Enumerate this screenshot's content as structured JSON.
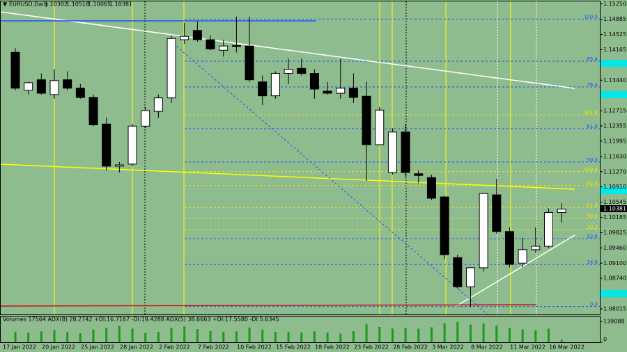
{
  "chart_data": {
    "type": "candlestick",
    "title": "EURUSD,Daily",
    "categories": [
      "17 Jan 2022",
      null,
      null,
      "20 Jan 2022",
      null,
      null,
      "25 Jan 2022",
      null,
      null,
      "28 Jan 2022",
      null,
      null,
      "2 Feb 2022",
      null,
      null,
      "7 Feb 2022",
      null,
      null,
      "10 Feb 2022",
      null,
      null,
      "15 Feb 2022",
      null,
      null,
      "18 Feb 2022",
      null,
      null,
      "23 Feb 2022",
      null,
      null,
      "28 Feb 2022",
      null,
      null,
      "3 Mar 2022",
      null,
      null,
      "8 Mar 2022",
      null,
      null,
      "11 Mar 2022",
      null,
      null,
      "16 Mar 2022"
    ],
    "open": [
      1.141,
      1.132,
      1.1345,
      1.131,
      1.1345,
      1.1325,
      1.1303,
      1.124,
      1.114,
      1.1145,
      1.1235,
      1.127,
      1.1302,
      1.144,
      1.1462,
      1.144,
      1.1415,
      1.1426,
      1.1425,
      1.134,
      1.1307,
      1.136,
      1.1372,
      1.136,
      1.1318,
      1.1313,
      1.1325,
      1.1306,
      1.1191,
      1.1125,
      1.1221,
      1.1122,
      1.1113,
      1.1067,
      1.0923,
      1.0854,
      1.0899,
      1.1072,
      1.0985,
      1.091,
      1.0942,
      1.095,
      1.10302
    ],
    "high": [
      1.142,
      1.134,
      1.136,
      1.137,
      1.1365,
      1.1335,
      1.131,
      1.1255,
      1.115,
      1.124,
      1.128,
      1.131,
      1.145,
      1.148,
      1.1483,
      1.145,
      1.144,
      1.1495,
      1.1495,
      1.1355,
      1.1365,
      1.1395,
      1.1395,
      1.137,
      1.134,
      1.1395,
      1.136,
      1.134,
      1.128,
      1.123,
      1.124,
      1.113,
      1.112,
      1.107,
      1.093,
      1.09,
      1.1075,
      1.111,
      1.0995,
      1.097,
      1.0995,
      1.104,
      1.10518
    ],
    "low": [
      1.132,
      1.131,
      1.131,
      1.13,
      1.132,
      1.13,
      1.1235,
      1.113,
      1.1125,
      1.114,
      1.123,
      1.1255,
      1.129,
      1.143,
      1.1435,
      1.1415,
      1.14,
      1.141,
      1.134,
      1.1285,
      1.13,
      1.1335,
      1.1355,
      1.13,
      1.131,
      1.13,
      1.129,
      1.1105,
      1.119,
      1.112,
      1.1115,
      1.11,
      1.106,
      1.092,
      1.085,
      1.0806,
      1.089,
      1.098,
      1.09,
      1.09,
      1.0935,
      1.0945,
      1.10065
    ],
    "close": [
      1.1325,
      1.1338,
      1.1313,
      1.1343,
      1.1325,
      1.1303,
      1.1238,
      1.114,
      1.1143,
      1.1235,
      1.1272,
      1.1302,
      1.1443,
      1.1448,
      1.144,
      1.1418,
      1.1425,
      1.1424,
      1.1345,
      1.1307,
      1.136,
      1.137,
      1.136,
      1.1323,
      1.1313,
      1.1325,
      1.1303,
      1.1191,
      1.1273,
      1.1221,
      1.1125,
      1.1118,
      1.1064,
      1.093,
      1.0854,
      1.0899,
      1.1075,
      1.0985,
      1.0907,
      1.0942,
      1.095,
      1.103,
      1.10381
    ],
    "up_color": "#ffffff",
    "down_color": "#000000",
    "ylim": [
      1.07883,
      1.15309
    ],
    "yticks": [
      {
        "value": 1.1525,
        "label": "1.15250"
      },
      1.14885,
      1.14525,
      1.14165,
      {
        "value": 1.1344,
        "label": "1.13440"
      },
      1.12715,
      1.12355,
      1.11995,
      {
        "value": 1.1163,
        "label": "1.11630"
      },
      {
        "value": 1.1127,
        "label": "1.11270"
      },
      {
        "value": 1.1091,
        "label": "1.10910"
      },
      1.10545,
      1.10185,
      1.09825,
      {
        "value": 1.0946,
        "label": "1.09460"
      },
      {
        "value": 1.091,
        "label": "1.09100"
      },
      {
        "value": 1.0874,
        "label": "1.08740"
      },
      1.08015
    ],
    "fib_levels": [
      {
        "label": "100.0",
        "level": 1.1489,
        "color": "#1e50ff"
      },
      {
        "label": "85.4",
        "level": 1.1389,
        "color": "#1e50ff"
      },
      {
        "label": "76.4",
        "level": 1.1328,
        "color": "#1e50ff"
      },
      {
        "label": "61.8",
        "level": 1.1229,
        "color": "#1e50ff"
      },
      {
        "label": "50.0",
        "level": 1.115,
        "color": "#1e50ff"
      },
      {
        "label": "23.6",
        "level": 1.0968,
        "color": "#1e50ff"
      },
      {
        "label": "14.6",
        "level": 1.0907,
        "color": "#1e50ff"
      },
      {
        "label": "0.0",
        "level": 1.0807,
        "color": "#1e50ff"
      },
      {
        "label": "161.8",
        "level": 1.1262,
        "color": "#e8e800"
      },
      {
        "label": "100.0",
        "level": 1.1127,
        "color": "#e8e800"
      },
      {
        "label": "85.4",
        "level": 1.1094,
        "color": "#e8e800"
      },
      {
        "label": "61.8",
        "level": 1.1042,
        "color": "#e8e800"
      },
      {
        "label": "50.0",
        "level": 1.1016,
        "color": "#e8e800"
      },
      {
        "label": "38.2",
        "level": 1.099,
        "color": "#e8e800"
      }
    ],
    "volume_label": "Volumes 17564  ADX(8) 28.2742 +DI:16.7167 -DI:19.4288  ADX(5) 38.6663 +DI:17.5580 -DI:5.6345",
    "volumes": [
      70000,
      65000,
      72000,
      80000,
      68000,
      60000,
      85000,
      95000,
      110000,
      90000,
      62000,
      70000,
      95000,
      105000,
      88000,
      75000,
      70000,
      72000,
      98000,
      85000,
      70000,
      68000,
      66000,
      72000,
      64000,
      58000,
      74000,
      120000,
      102000,
      92000,
      96000,
      90000,
      100000,
      128000,
      136000,
      118000,
      125000,
      112000,
      96000,
      86000,
      80000,
      90000,
      17564
    ],
    "volume_color": "#1a9a1a",
    "y2lim": [
      0,
      139088
    ],
    "y2ticks": [
      0,
      139088
    ]
  }
}
